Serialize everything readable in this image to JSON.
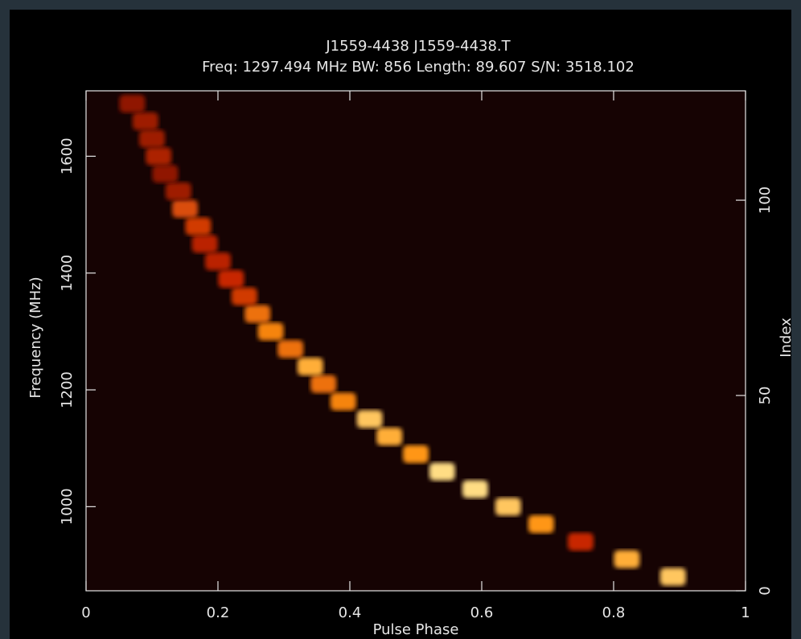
{
  "chart_data": {
    "type": "waterfall",
    "title": "J1559-4438 J1559-4438.T",
    "subtitle": "Freq: 1297.494 MHz BW: 856 Length: 89.607 S/N: 3518.102",
    "x_label": "Pulse Phase",
    "y_label": "Frequency (MHz)",
    "y2_label": "Index",
    "x": [
      0.89,
      0.82,
      0.75,
      0.69,
      0.64,
      0.59,
      0.54,
      0.5,
      0.46,
      0.43,
      0.39,
      0.36,
      0.34,
      0.31,
      0.28,
      0.26,
      0.24,
      0.22,
      0.2,
      0.18,
      0.17,
      0.15,
      0.14,
      0.12,
      0.11,
      0.1,
      0.09,
      0.07
    ],
    "y": [
      880,
      910,
      940,
      970,
      1000,
      1030,
      1060,
      1090,
      1120,
      1150,
      1180,
      1210,
      1240,
      1270,
      1300,
      1330,
      1360,
      1390,
      1420,
      1450,
      1480,
      1510,
      1540,
      1570,
      1600,
      1630,
      1660,
      1690
    ],
    "intensity": [
      0.9,
      0.85,
      0.5,
      0.8,
      0.9,
      0.95,
      0.95,
      0.8,
      0.85,
      0.9,
      0.75,
      0.7,
      0.85,
      0.7,
      0.75,
      0.7,
      0.55,
      0.5,
      0.45,
      0.45,
      0.55,
      0.6,
      0.35,
      0.3,
      0.4,
      0.35,
      0.35,
      0.3
    ],
    "xlim": [
      0,
      1
    ],
    "xticks": [
      0,
      0.2,
      0.4,
      0.6,
      0.8,
      1
    ],
    "ylim": [
      856,
      1712
    ],
    "yticks": [
      1000,
      1200,
      1400,
      1600
    ],
    "y2lim": [
      0,
      128
    ],
    "y2ticks": [
      0,
      50,
      100
    ]
  }
}
